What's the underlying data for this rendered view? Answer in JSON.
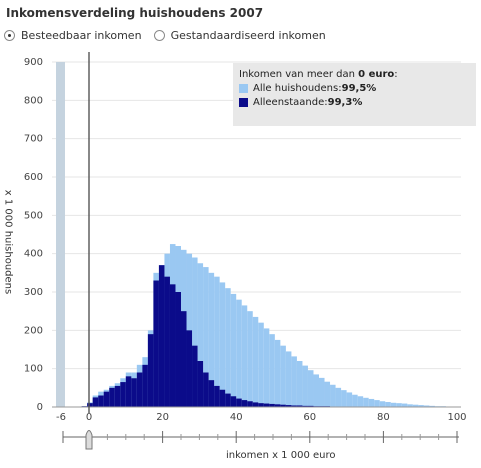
{
  "title": "Inkomensverdeling huishoudens 2007",
  "radios": [
    {
      "label": "Besteedbaar inkomen",
      "selected": true
    },
    {
      "label": "Gestandaardiseerd inkomen",
      "selected": false
    }
  ],
  "legend": {
    "header_prefix": "Inkomen van meer dan ",
    "header_value": "0 euro",
    "header_suffix": ":",
    "items": [
      {
        "label": "Alle huishoudens: ",
        "value": "99,5%",
        "color": "#9ac8f2"
      },
      {
        "label": "Alleenstaande: ",
        "value": "99,3%",
        "color": "#0b0b8a"
      }
    ]
  },
  "slider": {
    "value": 0
  },
  "chart_data": {
    "type": "bar",
    "title": "Inkomensverdeling huishoudens 2007",
    "xlabel": "inkomen x 1 000 euro",
    "ylabel": "x 1 000 huishoudens",
    "xlim": [
      -6,
      100
    ],
    "ylim": [
      0,
      900
    ],
    "x_ticks": [
      -6,
      0,
      20,
      40,
      60,
      80,
      100
    ],
    "y_ticks": [
      0,
      100,
      200,
      300,
      400,
      500,
      600,
      700,
      800,
      900
    ],
    "grid": true,
    "legend_position": "top-right",
    "colors": {
      "all": "#9ac8f2",
      "single": "#0b0b8a",
      "excluded": "#c5d3df"
    },
    "excluded_bar": {
      "from": -6,
      "to": -4,
      "value": 900
    },
    "series": [
      {
        "name": "Alle huishoudens",
        "bin_width": 1.5,
        "bins_from": -2,
        "values": [
          2,
          12,
          30,
          40,
          45,
          55,
          62,
          75,
          90,
          90,
          110,
          130,
          200,
          350,
          370,
          400,
          425,
          420,
          410,
          400,
          390,
          375,
          365,
          350,
          340,
          325,
          310,
          295,
          280,
          265,
          250,
          235,
          220,
          205,
          190,
          175,
          160,
          145,
          132,
          120,
          108,
          96,
          85,
          76,
          66,
          58,
          50,
          44,
          38,
          32,
          28,
          24,
          21,
          18,
          15,
          13,
          11,
          10,
          9,
          7,
          6,
          5,
          4,
          3,
          2,
          2
        ]
      },
      {
        "name": "Alleenstaande",
        "bin_width": 1.5,
        "bins_from": -2,
        "values": [
          2,
          10,
          25,
          30,
          40,
          50,
          55,
          65,
          80,
          75,
          90,
          110,
          190,
          330,
          370,
          340,
          320,
          300,
          250,
          200,
          160,
          120,
          90,
          70,
          55,
          45,
          35,
          28,
          22,
          18,
          15,
          12,
          10,
          9,
          8,
          7,
          6,
          5,
          4,
          4,
          3,
          3,
          2,
          2,
          2,
          1,
          1,
          1,
          1,
          1,
          0,
          0,
          0,
          0,
          0,
          0,
          0,
          0,
          0,
          0,
          0,
          0,
          0,
          0,
          0,
          0
        ]
      }
    ]
  }
}
